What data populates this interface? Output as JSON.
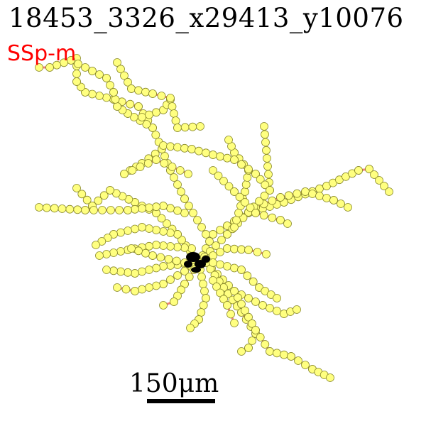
{
  "figure": {
    "title": "18453_3326_x29413_y10076",
    "region_label": "SSp-m",
    "scale_label": "150μm"
  },
  "colors": {
    "region_label": "#ff0000",
    "edge": "#f08078",
    "node_fill": "#ffff80",
    "node_stroke": "#8a8a2a",
    "soma": "#000000",
    "scale_bar": "#000000"
  },
  "icons": {
    "neuron": "neuron-morphology-icon"
  }
}
